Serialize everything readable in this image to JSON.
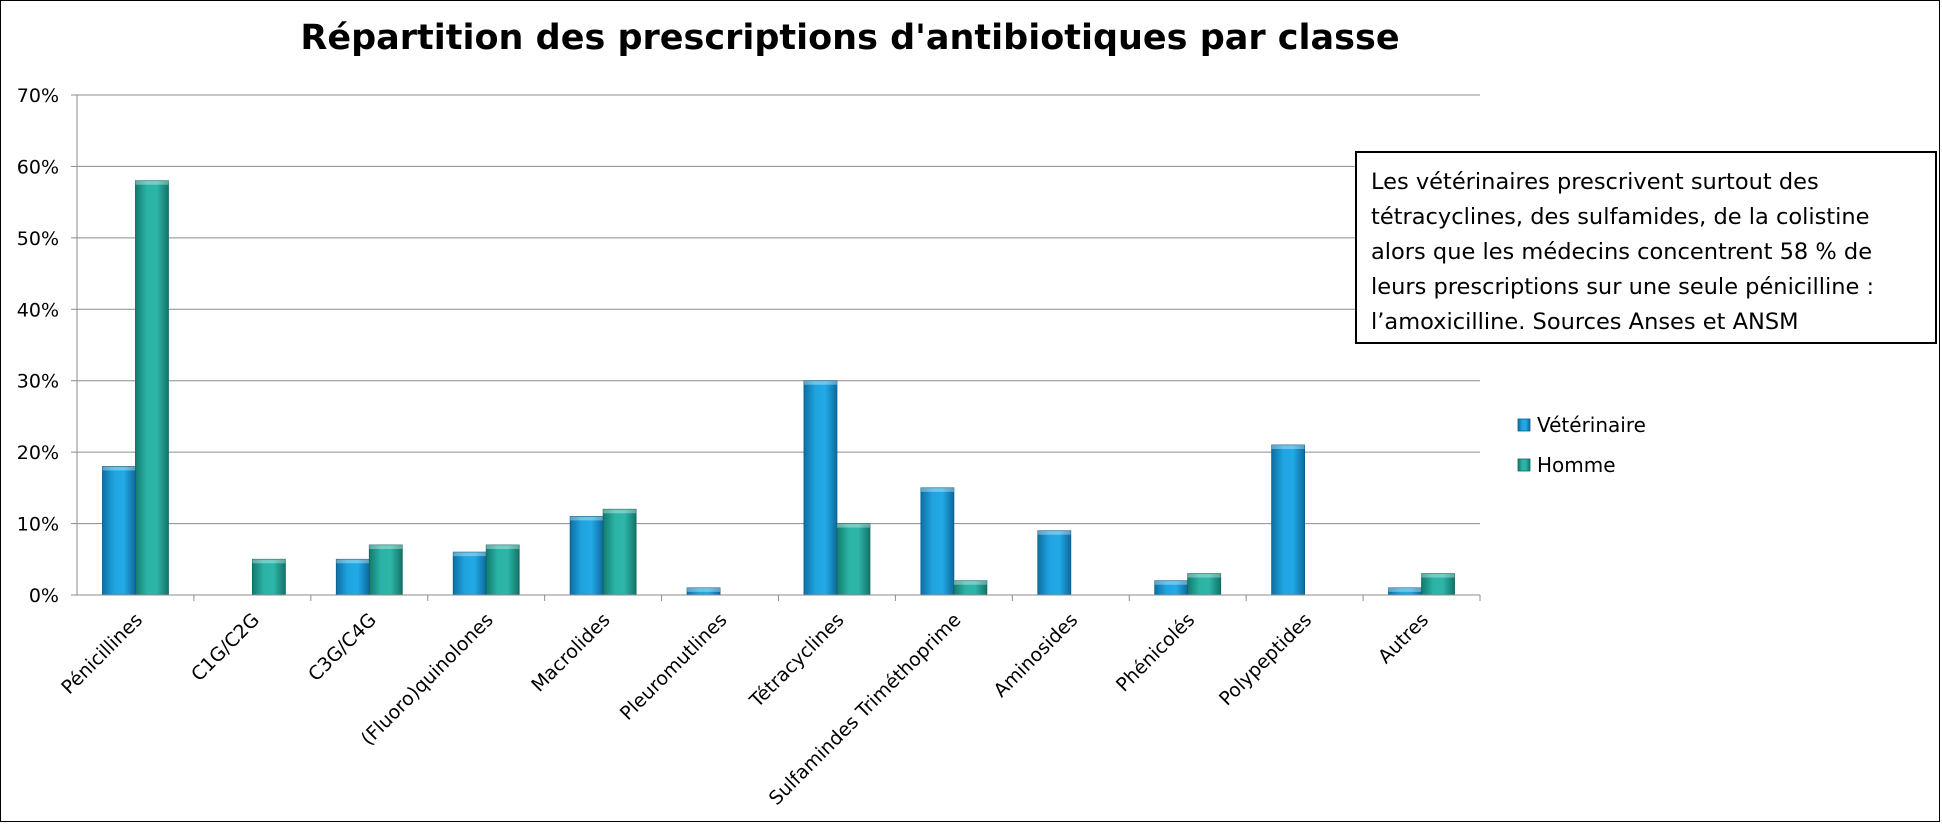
{
  "chart_data": {
    "type": "bar",
    "title": "Répartition des prescriptions d'antibiotiques par classe",
    "categories": [
      "Pénicillines",
      "C1G/C2G",
      "C3G/C4G",
      "(Fluoro)quinolones",
      "Macrolides",
      "Pleuromutlines",
      "Tétracyclines",
      "Sulfamindes Triméthoprime",
      "Aminosides",
      "Phénicolés",
      "Polypeptides",
      "Autres"
    ],
    "series": [
      {
        "name": "Vétérinaire",
        "color": "#1B9AD6",
        "values": [
          18,
          0,
          5,
          6,
          11,
          1,
          30,
          15,
          9,
          2,
          21,
          1
        ]
      },
      {
        "name": "Homme",
        "color": "#24A69A",
        "values": [
          58,
          5,
          7,
          7,
          12,
          0,
          10,
          2,
          0,
          3,
          0,
          3
        ]
      }
    ],
    "ylim": [
      0,
      70
    ],
    "yticks": [
      "0%",
      "10%",
      "20%",
      "30%",
      "40%",
      "50%",
      "60%",
      "70%"
    ],
    "grid": true,
    "legend_position": "right",
    "annotation": "Les vétérinaires prescrivent surtout des tétracyclines, des sulfamides, de la colistine alors que les médecins concentrent 58 % de leurs prescriptions sur une seule pénicilline : l’amoxicilline. Sources Anses et ANSM"
  }
}
